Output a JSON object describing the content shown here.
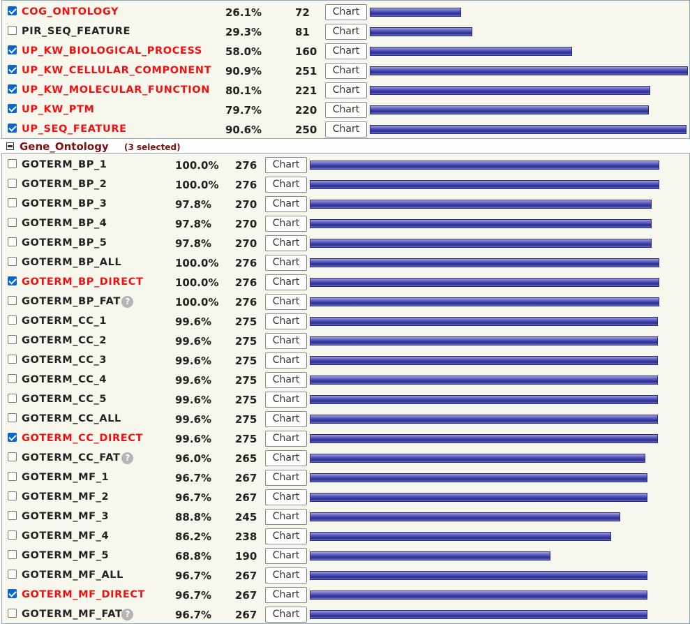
{
  "top_section": {
    "rows": [
      {
        "name": "COG_ONTOLOGY",
        "percent": "26.1%",
        "count": "72",
        "checked": true,
        "button": "Chart",
        "bar_fraction": 0.287
      },
      {
        "name": "PIR_SEQ_FEATURE",
        "percent": "29.3%",
        "count": "81",
        "checked": false,
        "button": "Chart",
        "bar_fraction": 0.322
      },
      {
        "name": "UP_KW_BIOLOGICAL_PROCESS",
        "percent": "58.0%",
        "count": "160",
        "checked": true,
        "button": "Chart",
        "bar_fraction": 0.637
      },
      {
        "name": "UP_KW_CELLULAR_COMPONENT",
        "percent": "90.9%",
        "count": "251",
        "checked": true,
        "button": "Chart",
        "bar_fraction": 1.0
      },
      {
        "name": "UP_KW_MOLECULAR_FUNCTION",
        "percent": "80.1%",
        "count": "221",
        "checked": true,
        "button": "Chart",
        "bar_fraction": 0.881
      },
      {
        "name": "UP_KW_PTM",
        "percent": "79.7%",
        "count": "220",
        "checked": true,
        "button": "Chart",
        "bar_fraction": 0.877
      },
      {
        "name": "UP_SEQ_FEATURE",
        "percent": "90.6%",
        "count": "250",
        "checked": true,
        "button": "Chart",
        "bar_fraction": 0.996
      }
    ]
  },
  "gene_ontology": {
    "title": "Gene_Ontology",
    "selected_label": "(3 selected)",
    "rows": [
      {
        "name": "GOTERM_BP_1",
        "percent": "100.0%",
        "count": "276",
        "checked": false,
        "button": "Chart",
        "bar_fraction": 1.0
      },
      {
        "name": "GOTERM_BP_2",
        "percent": "100.0%",
        "count": "276",
        "checked": false,
        "button": "Chart",
        "bar_fraction": 1.0
      },
      {
        "name": "GOTERM_BP_3",
        "percent": "97.8%",
        "count": "270",
        "checked": false,
        "button": "Chart",
        "bar_fraction": 0.978
      },
      {
        "name": "GOTERM_BP_4",
        "percent": "97.8%",
        "count": "270",
        "checked": false,
        "button": "Chart",
        "bar_fraction": 0.978
      },
      {
        "name": "GOTERM_BP_5",
        "percent": "97.8%",
        "count": "270",
        "checked": false,
        "button": "Chart",
        "bar_fraction": 0.978
      },
      {
        "name": "GOTERM_BP_ALL",
        "percent": "100.0%",
        "count": "276",
        "checked": false,
        "button": "Chart",
        "bar_fraction": 1.0
      },
      {
        "name": "GOTERM_BP_DIRECT",
        "percent": "100.0%",
        "count": "276",
        "checked": true,
        "button": "Chart",
        "bar_fraction": 1.0
      },
      {
        "name": "GOTERM_BP_FAT",
        "percent": "100.0%",
        "count": "276",
        "checked": false,
        "button": "Chart",
        "bar_fraction": 1.0,
        "help_icon": "help-icon"
      },
      {
        "name": "GOTERM_CC_1",
        "percent": "99.6%",
        "count": "275",
        "checked": false,
        "button": "Chart",
        "bar_fraction": 0.996
      },
      {
        "name": "GOTERM_CC_2",
        "percent": "99.6%",
        "count": "275",
        "checked": false,
        "button": "Chart",
        "bar_fraction": 0.996
      },
      {
        "name": "GOTERM_CC_3",
        "percent": "99.6%",
        "count": "275",
        "checked": false,
        "button": "Chart",
        "bar_fraction": 0.996
      },
      {
        "name": "GOTERM_CC_4",
        "percent": "99.6%",
        "count": "275",
        "checked": false,
        "button": "Chart",
        "bar_fraction": 0.996
      },
      {
        "name": "GOTERM_CC_5",
        "percent": "99.6%",
        "count": "275",
        "checked": false,
        "button": "Chart",
        "bar_fraction": 0.996
      },
      {
        "name": "GOTERM_CC_ALL",
        "percent": "99.6%",
        "count": "275",
        "checked": false,
        "button": "Chart",
        "bar_fraction": 0.996
      },
      {
        "name": "GOTERM_CC_DIRECT",
        "percent": "99.6%",
        "count": "275",
        "checked": true,
        "button": "Chart",
        "bar_fraction": 0.996
      },
      {
        "name": "GOTERM_CC_FAT",
        "percent": "96.0%",
        "count": "265",
        "checked": false,
        "button": "Chart",
        "bar_fraction": 0.96,
        "help_icon": "help-icon"
      },
      {
        "name": "GOTERM_MF_1",
        "percent": "96.7%",
        "count": "267",
        "checked": false,
        "button": "Chart",
        "bar_fraction": 0.967
      },
      {
        "name": "GOTERM_MF_2",
        "percent": "96.7%",
        "count": "267",
        "checked": false,
        "button": "Chart",
        "bar_fraction": 0.967
      },
      {
        "name": "GOTERM_MF_3",
        "percent": "88.8%",
        "count": "245",
        "checked": false,
        "button": "Chart",
        "bar_fraction": 0.888
      },
      {
        "name": "GOTERM_MF_4",
        "percent": "86.2%",
        "count": "238",
        "checked": false,
        "button": "Chart",
        "bar_fraction": 0.862
      },
      {
        "name": "GOTERM_MF_5",
        "percent": "68.8%",
        "count": "190",
        "checked": false,
        "button": "Chart",
        "bar_fraction": 0.688
      },
      {
        "name": "GOTERM_MF_ALL",
        "percent": "96.7%",
        "count": "267",
        "checked": false,
        "button": "Chart",
        "bar_fraction": 0.967
      },
      {
        "name": "GOTERM_MF_DIRECT",
        "percent": "96.7%",
        "count": "267",
        "checked": true,
        "button": "Chart",
        "bar_fraction": 0.967
      },
      {
        "name": "GOTERM_MF_FAT",
        "percent": "96.7%",
        "count": "267",
        "checked": false,
        "button": "Chart",
        "bar_fraction": 0.967,
        "help_icon": "help-icon"
      }
    ]
  },
  "colors": {
    "selected_text": "#ee1111",
    "section_title": "#7a1010",
    "panel_background": "#f8f7ed",
    "bar": "#3a3ca0",
    "checkbox_checked": "#0a64d8"
  },
  "icons": {
    "collapse": "minus-box-icon",
    "help": "question-mark-circle-icon"
  }
}
